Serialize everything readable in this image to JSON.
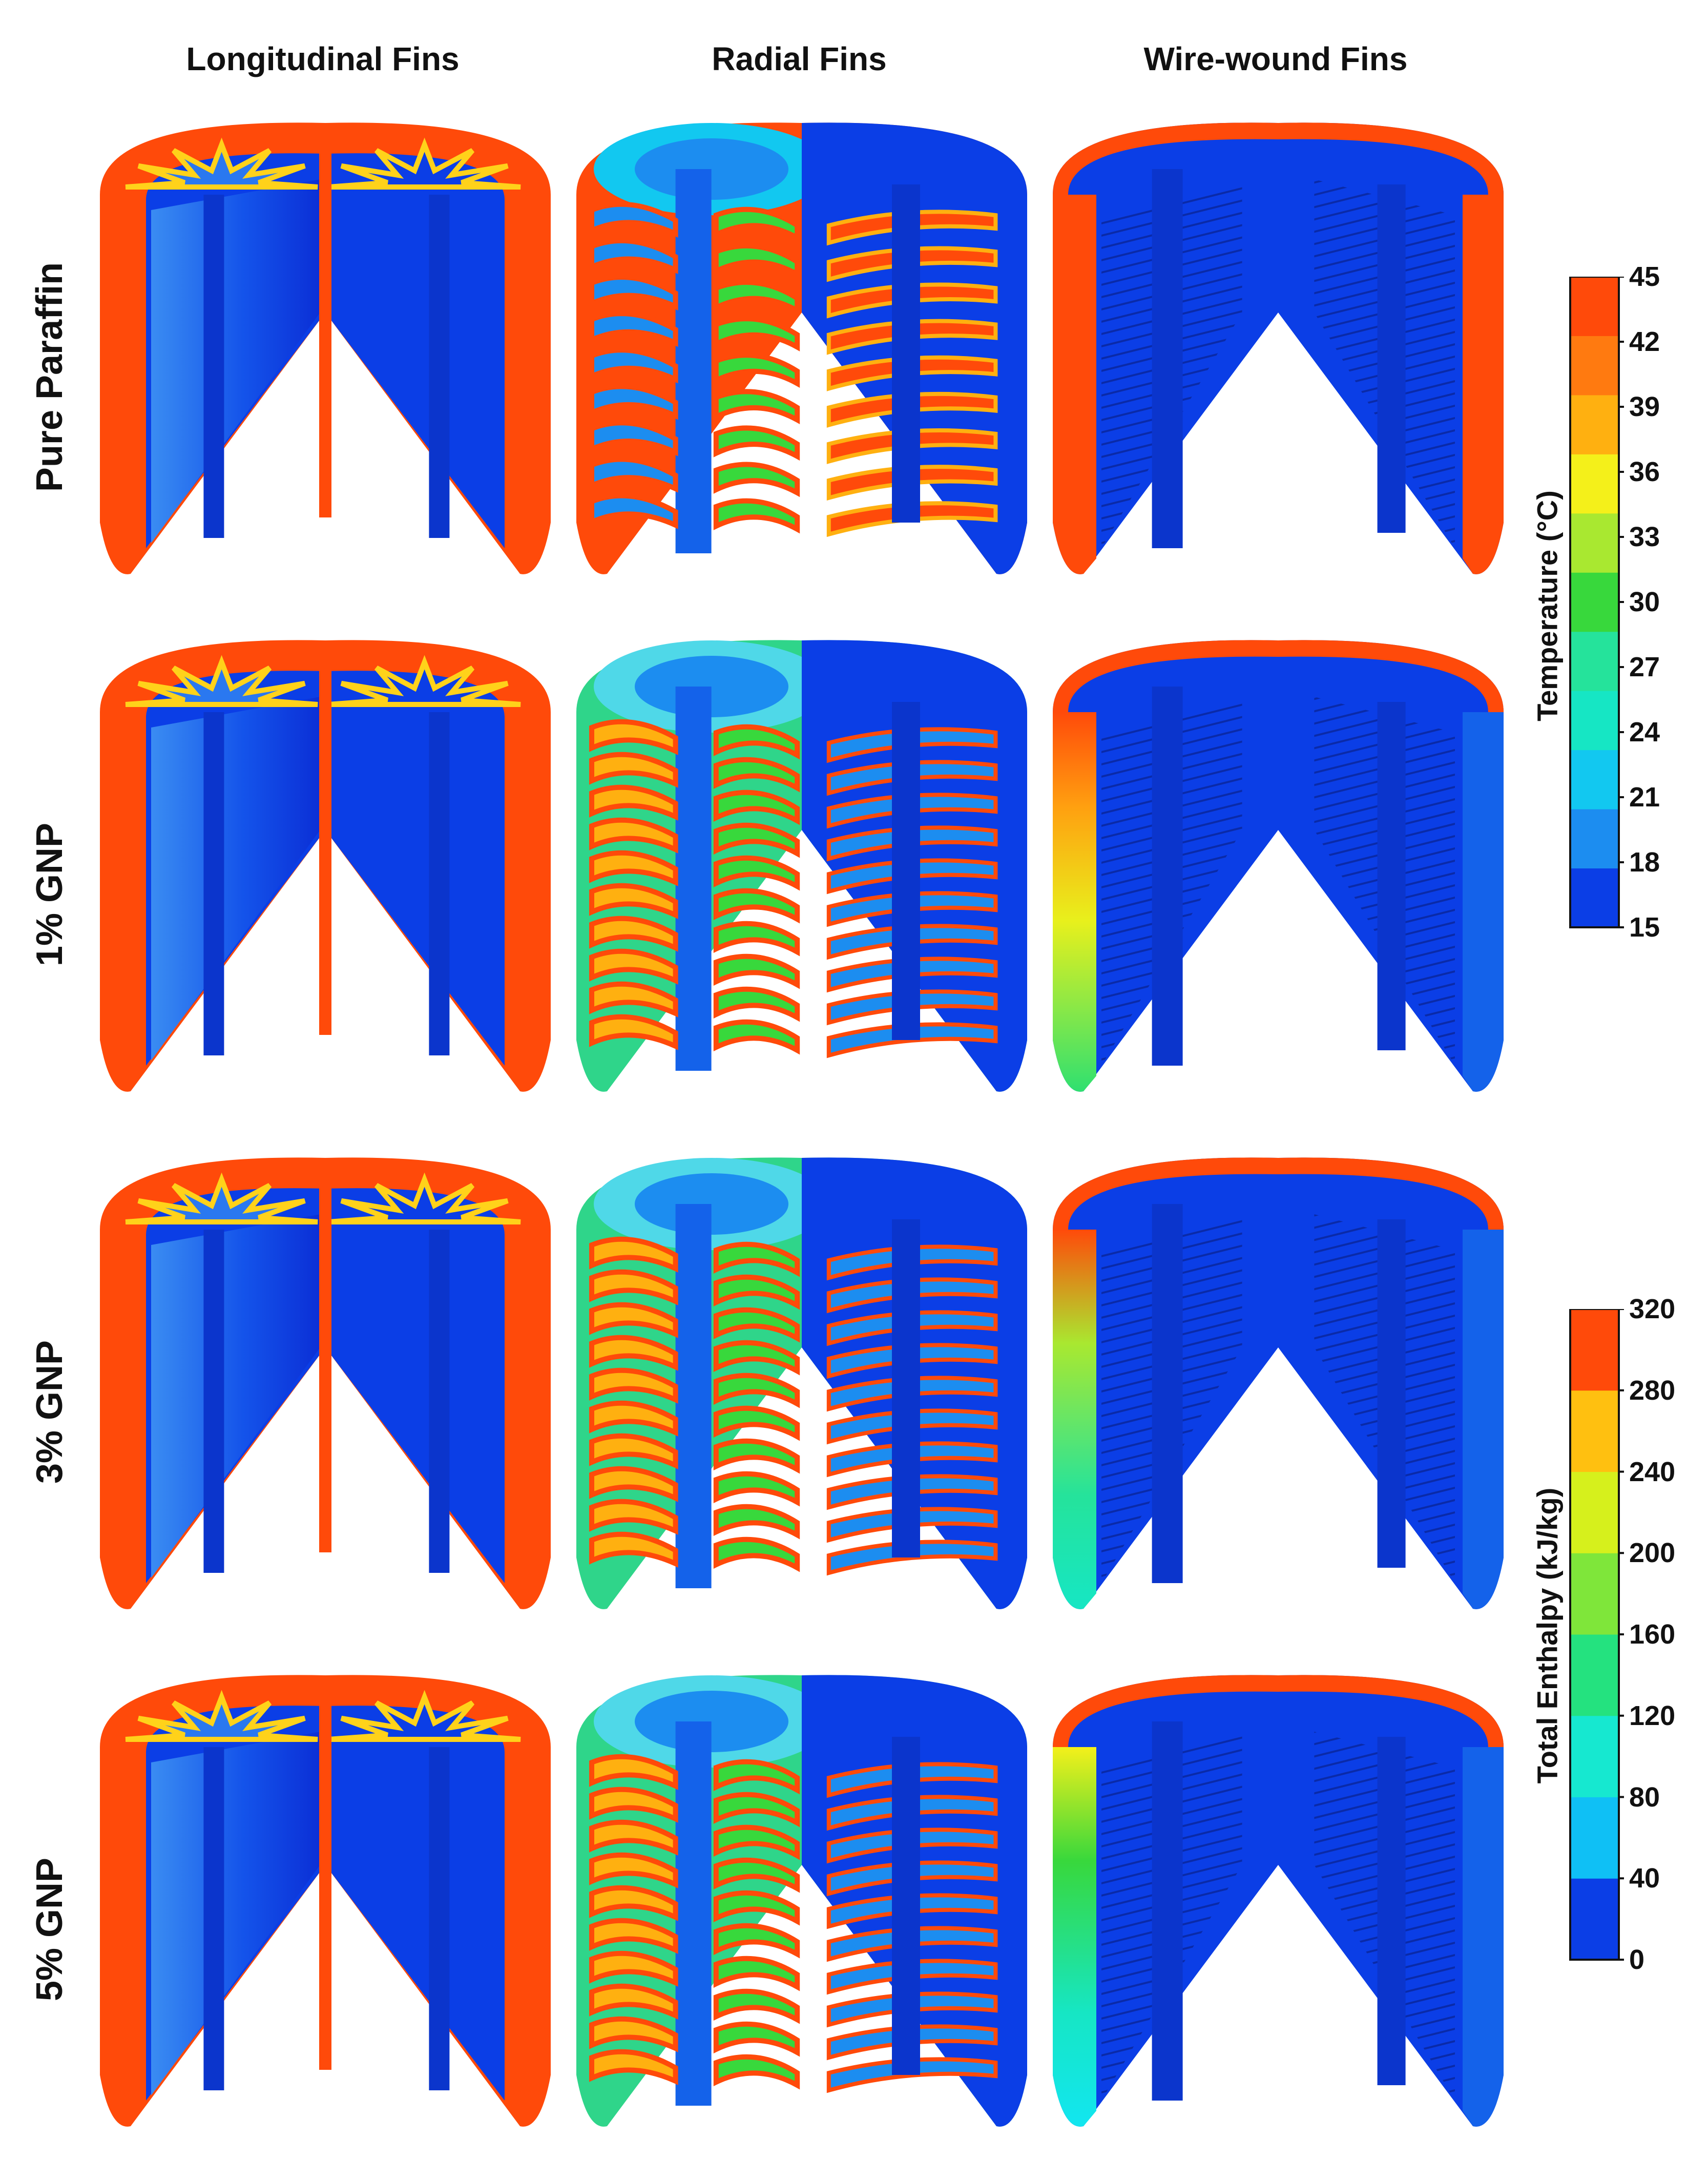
{
  "columns": [
    "Longitudinal Fins",
    "Radial Fins",
    "Wire-wound Fins"
  ],
  "rows": [
    "Pure Paraffin",
    "1% GNP",
    "3% GNP",
    "5% GNP"
  ],
  "colorbars": [
    {
      "title": "Temperature (°C)",
      "ticks": [
        "45",
        "42",
        "39",
        "36",
        "33",
        "30",
        "27",
        "24",
        "21",
        "18",
        "15"
      ]
    },
    {
      "title": "Total Enthalpy (kJ/kg)",
      "ticks": [
        "320",
        "280",
        "240",
        "200",
        "160",
        "120",
        "80",
        "40",
        "0"
      ]
    }
  ],
  "colors": {
    "hot": "#ff4a0a",
    "cold": "#0b3ee6",
    "band_temperature": [
      "#0b3ee6",
      "#1c8df0",
      "#12c8f0",
      "#16e6c4",
      "#25e39b",
      "#38d83c",
      "#a9e830",
      "#f4f01a",
      "#ffb010",
      "#ff7a10",
      "#ff4a0a"
    ],
    "band_enthalpy": [
      "#0b3ee6",
      "#0fc0f5",
      "#16e8d0",
      "#24e27f",
      "#7fe63a",
      "#d6f01c",
      "#ffc010",
      "#ff4a0a"
    ]
  }
}
